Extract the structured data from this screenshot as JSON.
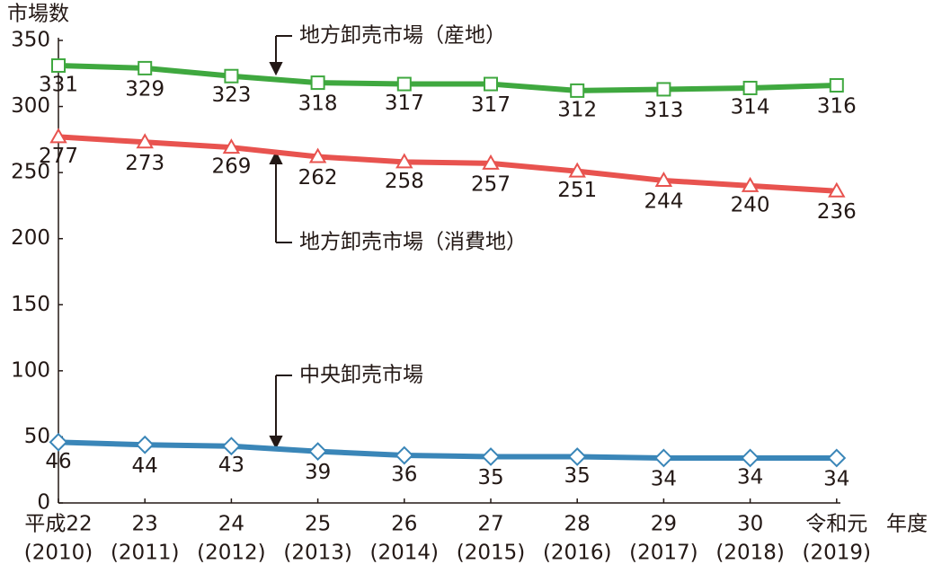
{
  "chart_data": {
    "type": "line",
    "y_label": "市場数",
    "x_label": "年度",
    "categories": [
      "平成22",
      "23",
      "24",
      "25",
      "26",
      "27",
      "28",
      "29",
      "30",
      "令和元"
    ],
    "category_years": [
      "(2010)",
      "(2011)",
      "(2012)",
      "(2013)",
      "(2014)",
      "(2015)",
      "(2016)",
      "(2017)",
      "(2018)",
      "(2019)"
    ],
    "ylim": [
      0,
      350
    ],
    "yticks": [
      0,
      50,
      100,
      150,
      200,
      250,
      300,
      350
    ],
    "grid": false,
    "series": [
      {
        "name": "地方卸売市場（産地）",
        "color": "#3fa83f",
        "marker": "square",
        "values": [
          331,
          329,
          323,
          318,
          317,
          317,
          312,
          313,
          314,
          316
        ]
      },
      {
        "name": "地方卸売市場（消費地）",
        "color": "#e8534f",
        "marker": "triangle",
        "values": [
          277,
          273,
          269,
          262,
          258,
          257,
          251,
          244,
          240,
          236
        ]
      },
      {
        "name": "中央卸売市場",
        "color": "#3a86b8",
        "marker": "diamond",
        "values": [
          46,
          44,
          43,
          39,
          36,
          35,
          35,
          34,
          34,
          34
        ]
      }
    ]
  }
}
